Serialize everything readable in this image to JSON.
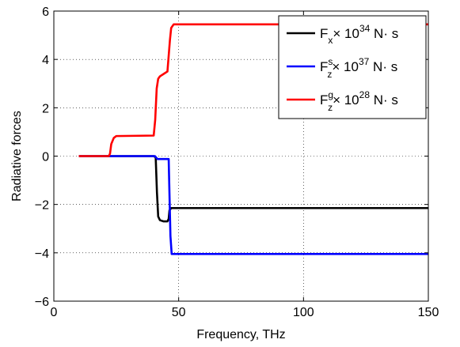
{
  "chart_data": {
    "type": "line",
    "xlabel": "Frequency, THz",
    "ylabel": "Radiative forces",
    "xlim": [
      0,
      150
    ],
    "ylim": [
      -6,
      6
    ],
    "xticks": [
      0,
      50,
      100,
      150
    ],
    "yticks": [
      -6,
      -4,
      -2,
      0,
      2,
      4,
      6
    ],
    "xtick_labels": [
      "0",
      "50",
      "100",
      "150"
    ],
    "ytick_labels": [
      "−6",
      "−4",
      "−2",
      "0",
      "2",
      "4",
      "6"
    ],
    "grid": true,
    "legend_position": "top-right",
    "series": [
      {
        "name": "F_x × 10^34 N· s",
        "label_main": "F",
        "label_sub": "x",
        "label_sup_prefix": "",
        "label_exp": "34",
        "color": "#000000",
        "x": [
          10,
          40,
          40.8,
          41.3,
          41.8,
          42.5,
          44,
          45.5,
          46,
          46.3,
          47,
          150
        ],
        "y": [
          0,
          0,
          -0.05,
          -1.5,
          -2.5,
          -2.65,
          -2.7,
          -2.7,
          -2.6,
          -2.25,
          -2.15,
          -2.15
        ]
      },
      {
        "name": "F_z^s × 10^37 N· s",
        "label_main": "F",
        "label_sub": "z",
        "label_sup_prefix": "s",
        "label_exp": "37",
        "color": "#0000ff",
        "x": [
          10,
          40.5,
          41.5,
          45,
          46,
          46.3,
          46.7,
          47.2,
          150
        ],
        "y": [
          0,
          0,
          -0.12,
          -0.12,
          -0.12,
          -1.5,
          -3.3,
          -4.05,
          -4.05
        ]
      },
      {
        "name": "F_z^g × 10^28 N· s",
        "label_main": "F",
        "label_sub": "z",
        "label_sup_prefix": "g",
        "label_exp": "28",
        "color": "#ff0000",
        "x": [
          10,
          22,
          22.5,
          23,
          24,
          25,
          40,
          40.6,
          41.2,
          41.8,
          42.5,
          44,
          45.5,
          46.5,
          47,
          48,
          150
        ],
        "y": [
          0,
          0,
          0.1,
          0.5,
          0.75,
          0.83,
          0.85,
          1.5,
          2.8,
          3.2,
          3.3,
          3.4,
          3.5,
          4.8,
          5.3,
          5.45,
          5.45
        ]
      }
    ]
  }
}
